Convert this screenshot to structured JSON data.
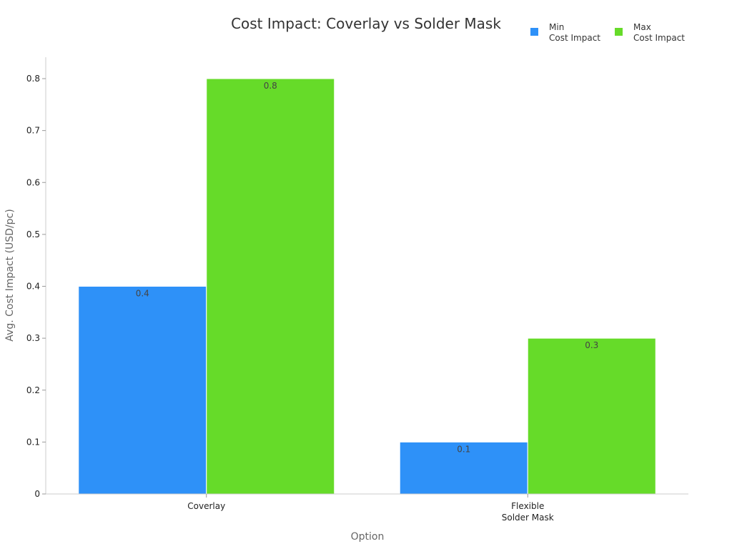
{
  "chart_data": {
    "type": "bar",
    "title": "Cost Impact: Coverlay vs Solder Mask",
    "xlabel": "Option",
    "ylabel": "Avg. Cost Impact (USD/pc)",
    "categories": [
      [
        "Coverlay"
      ],
      [
        "Flexible",
        "Solder Mask"
      ]
    ],
    "series": [
      {
        "name": [
          "Min",
          "Cost Impact"
        ],
        "values": [
          0.4,
          0.1
        ],
        "color": "#2e91f8"
      },
      {
        "name": [
          "Max",
          "Cost Impact"
        ],
        "values": [
          0.8,
          0.3
        ],
        "color": "#66db29"
      }
    ],
    "ylim": [
      0,
      0.8
    ],
    "yticks": [
      0,
      0.1,
      0.2,
      0.3,
      0.4,
      0.5,
      0.6,
      0.7,
      0.8
    ],
    "ytick_labels": [
      "0",
      "0.1",
      "0.2",
      "0.3",
      "0.4",
      "0.5",
      "0.6",
      "0.7",
      "0.8"
    ],
    "data_labels": [
      [
        "0.4",
        "0.1"
      ],
      [
        "0.8",
        "0.3"
      ]
    ],
    "grid": false,
    "legend": "top-right"
  }
}
